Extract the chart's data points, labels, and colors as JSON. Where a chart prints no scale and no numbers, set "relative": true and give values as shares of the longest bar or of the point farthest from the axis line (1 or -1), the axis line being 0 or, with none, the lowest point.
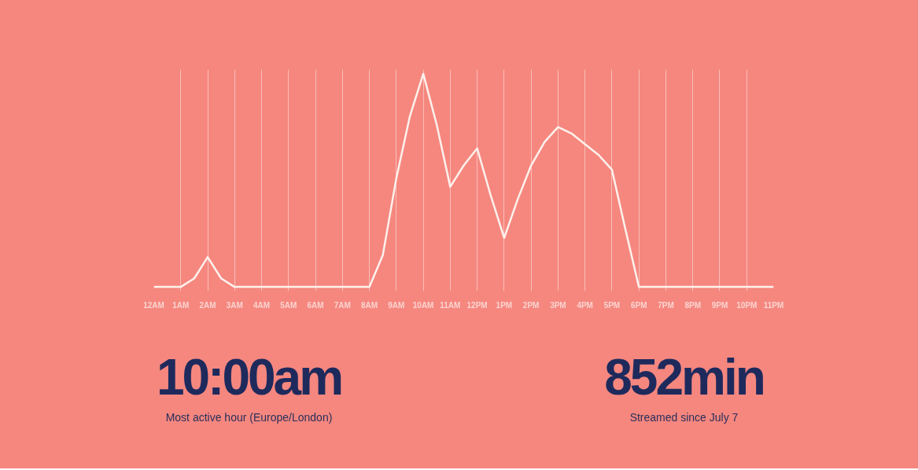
{
  "chart_data": {
    "type": "line",
    "relative": true,
    "color": "#fdf1ec",
    "categories": [
      "12AM",
      null,
      "1AM",
      null,
      "2AM",
      null,
      "3AM",
      null,
      "4AM",
      null,
      "5AM",
      null,
      "6AM",
      null,
      "7AM",
      null,
      "8AM",
      null,
      "9AM",
      null,
      "10AM",
      null,
      "11AM",
      null,
      "12PM",
      null,
      "1PM",
      null,
      "2PM",
      null,
      "3PM",
      null,
      "4PM",
      null,
      "5PM",
      null,
      "6PM",
      null,
      "7PM",
      null,
      "8PM",
      null,
      "9PM",
      null,
      "10PM",
      null,
      "11PM"
    ],
    "values": [
      0,
      0,
      0,
      0.04,
      0.14,
      0.04,
      0,
      0,
      0,
      0,
      0,
      0,
      0,
      0,
      0,
      0,
      0,
      0.15,
      0.51,
      0.8,
      1,
      0.76,
      0.47,
      0.57,
      0.65,
      0.43,
      0.23,
      0.41,
      0.57,
      0.68,
      0.75,
      0.72,
      0.67,
      0.62,
      0.55,
      0.27,
      0,
      0,
      0,
      0,
      0,
      0,
      0,
      0,
      0,
      0,
      0
    ],
    "grid": "x",
    "tick_labels": "x",
    "marker": "none",
    "line_style": "solid",
    "annotations": [
      "10:00am",
      "Most active hour (Europe/London)",
      "852min",
      "Streamed since July 7"
    ]
  }
}
